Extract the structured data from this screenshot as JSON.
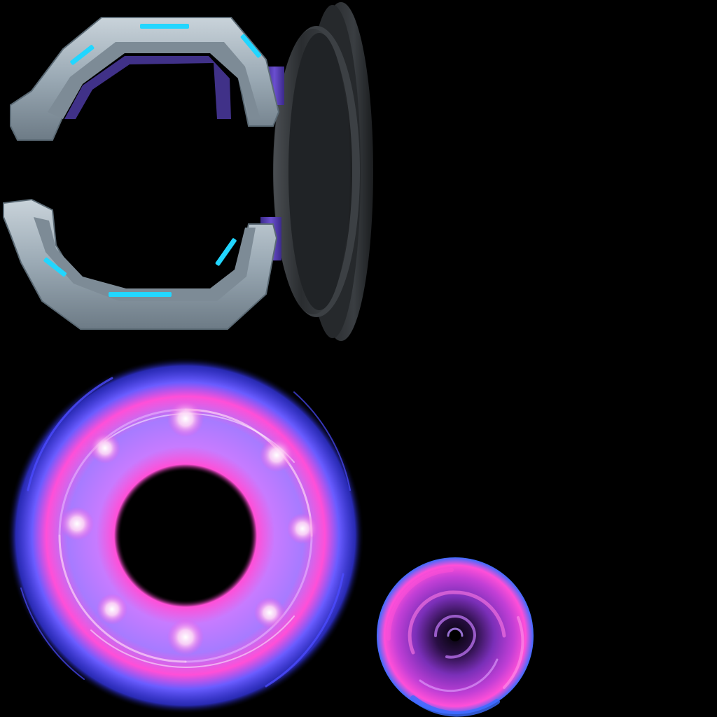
{
  "sheet": {
    "background": "#000000",
    "sprites": [
      {
        "id": "clamp",
        "kind": "metal-clamp-frame",
        "colors": {
          "metal": "#9aa9b4",
          "metal_dark": "#5b6a75",
          "light_strip": "#22d6ff",
          "joint": "#5a3fb8",
          "disc": "#2a2d30"
        }
      },
      {
        "id": "portal-ring",
        "kind": "swirling-energy-ring",
        "colors": {
          "inner": "#ff4fd8",
          "mid": "#c77bff",
          "outer": "#3a3cff",
          "glow": "#ffd6f5"
        }
      },
      {
        "id": "vortex-disc",
        "kind": "swirl-vortex-disc",
        "colors": {
          "core": "#05030a",
          "mid": "#7a2fb8",
          "edge": "#ff4fd8",
          "blue": "#3b6cff"
        }
      }
    ]
  }
}
